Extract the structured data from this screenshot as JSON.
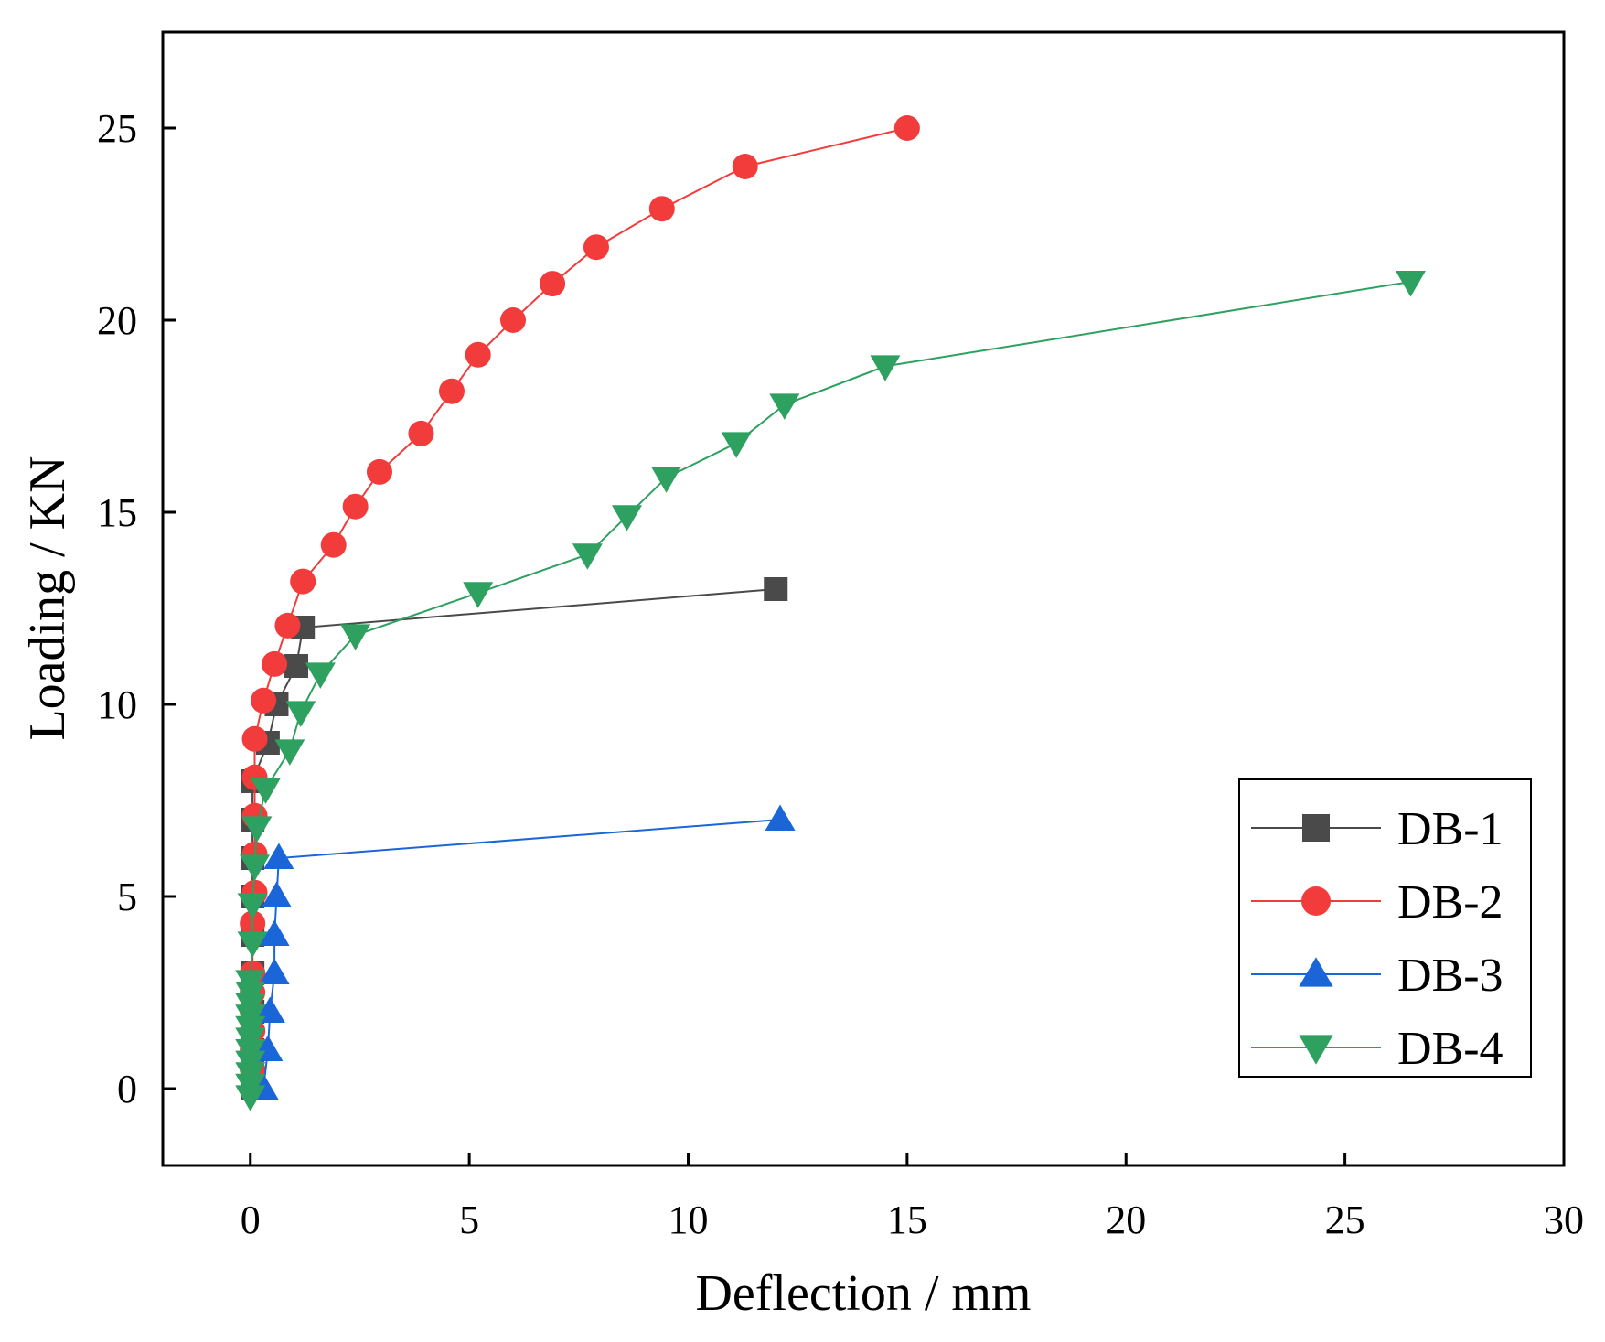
{
  "chart_data": {
    "type": "scatter",
    "title": "",
    "xlabel": "Deflection / mm",
    "ylabel": "Loading / KN",
    "xlim": [
      -2,
      30
    ],
    "ylim": [
      -2,
      27.5
    ],
    "xticks": [
      0,
      5,
      10,
      15,
      20,
      25,
      30
    ],
    "yticks": [
      0,
      5,
      10,
      15,
      20,
      25
    ],
    "grid": false,
    "legend_position": "bottom-right",
    "series": [
      {
        "name": "DB-1",
        "color": "#4a4a4a",
        "marker": "square",
        "points": [
          [
            0.05,
            0
          ],
          [
            0.05,
            1
          ],
          [
            0.05,
            2
          ],
          [
            0.05,
            3
          ],
          [
            0.05,
            4
          ],
          [
            0.05,
            5
          ],
          [
            0.05,
            6
          ],
          [
            0.05,
            7
          ],
          [
            0.05,
            8
          ],
          [
            0.4,
            9
          ],
          [
            0.6,
            10
          ],
          [
            1.05,
            11
          ],
          [
            1.2,
            12
          ],
          [
            12.0,
            13
          ]
        ]
      },
      {
        "name": "DB-2",
        "color": "#f23b3b",
        "marker": "circle",
        "points": [
          [
            0.05,
            0.5
          ],
          [
            0.05,
            1
          ],
          [
            0.05,
            1.5
          ],
          [
            0.05,
            2
          ],
          [
            0.05,
            2.5
          ],
          [
            0.05,
            3
          ],
          [
            0.05,
            4.3
          ],
          [
            0.1,
            5.1
          ],
          [
            0.1,
            6.1
          ],
          [
            0.1,
            7.1
          ],
          [
            0.1,
            8.1
          ],
          [
            0.1,
            9.1
          ],
          [
            0.3,
            10.1
          ],
          [
            0.55,
            11.05
          ],
          [
            0.85,
            12.05
          ],
          [
            1.2,
            13.2
          ],
          [
            1.9,
            14.15
          ],
          [
            2.4,
            15.15
          ],
          [
            2.95,
            16.05
          ],
          [
            3.9,
            17.05
          ],
          [
            4.6,
            18.15
          ],
          [
            5.2,
            19.1
          ],
          [
            6.0,
            20.0
          ],
          [
            6.9,
            20.95
          ],
          [
            7.9,
            21.9
          ],
          [
            9.4,
            22.9
          ],
          [
            11.3,
            24.0
          ],
          [
            15.0,
            25.0
          ]
        ]
      },
      {
        "name": "DB-3",
        "color": "#1a66d9",
        "marker": "triangle-up",
        "points": [
          [
            0.3,
            0
          ],
          [
            0.4,
            1
          ],
          [
            0.45,
            2
          ],
          [
            0.55,
            3
          ],
          [
            0.55,
            4
          ],
          [
            0.6,
            5
          ],
          [
            0.65,
            6
          ],
          [
            12.1,
            7
          ]
        ]
      },
      {
        "name": "DB-4",
        "color": "#2ea05f",
        "marker": "triangle-down",
        "points": [
          [
            0,
            -0.2
          ],
          [
            0,
            0.1
          ],
          [
            0,
            0.4
          ],
          [
            0,
            0.7
          ],
          [
            0,
            1.0
          ],
          [
            0,
            1.3
          ],
          [
            0,
            1.6
          ],
          [
            0,
            1.9
          ],
          [
            0,
            2.2
          ],
          [
            0,
            2.5
          ],
          [
            0,
            2.8
          ],
          [
            0.05,
            3.8
          ],
          [
            0.05,
            4.8
          ],
          [
            0.1,
            5.8
          ],
          [
            0.15,
            6.8
          ],
          [
            0.35,
            7.8
          ],
          [
            0.9,
            8.8
          ],
          [
            1.15,
            9.8
          ],
          [
            1.6,
            10.8
          ],
          [
            2.4,
            11.8
          ],
          [
            5.2,
            12.9
          ],
          [
            7.7,
            13.9
          ],
          [
            8.6,
            14.9
          ],
          [
            9.5,
            15.9
          ],
          [
            11.1,
            16.8
          ],
          [
            12.2,
            17.8
          ],
          [
            14.5,
            18.8
          ],
          [
            26.5,
            21.0
          ]
        ]
      }
    ]
  }
}
